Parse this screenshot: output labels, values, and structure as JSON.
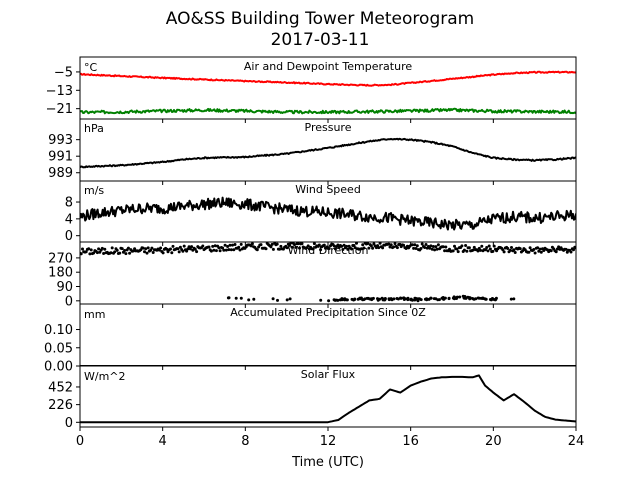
{
  "figure": {
    "title_line1": "AO&SS Building Tower Meteorogram",
    "title_line2": "2017-03-11",
    "xlabel": "Time (UTC)",
    "xlim": [
      0,
      24
    ],
    "xticks": [
      0,
      4,
      8,
      12,
      16,
      20,
      24
    ]
  },
  "chart_data": [
    {
      "type": "line",
      "title": "Air and Dewpoint Temperature",
      "unit": "°C",
      "ylim": [
        -25.5,
        1.5
      ],
      "yticks": [
        -5,
        -13,
        -21
      ],
      "ytick_labels": [
        "−5",
        "−13",
        "−21"
      ],
      "series": [
        {
          "color": "#ff0000",
          "x": [
            0,
            2,
            4,
            6,
            8,
            10,
            12,
            13,
            14,
            15,
            16,
            18,
            20,
            21,
            22,
            23,
            24
          ],
          "y": [
            -6.0,
            -6.8,
            -7.6,
            -8.3,
            -9.0,
            -9.6,
            -10.3,
            -10.6,
            -10.8,
            -10.6,
            -9.8,
            -8.0,
            -6.2,
            -5.5,
            -5.2,
            -5.1,
            -5.1
          ]
        },
        {
          "color": "#008000",
          "x": [
            0,
            2,
            4,
            6,
            8,
            10,
            12,
            14,
            16,
            18,
            20,
            22,
            24
          ],
          "y": [
            -22.6,
            -22.4,
            -22.0,
            -21.6,
            -22.0,
            -22.5,
            -22.5,
            -22.3,
            -22.0,
            -21.6,
            -22.1,
            -22.3,
            -22.4
          ]
        }
      ]
    },
    {
      "type": "line",
      "title": "Pressure",
      "unit": "hPa",
      "ylim": [
        988.0,
        995.5
      ],
      "yticks": [
        989,
        991,
        993
      ],
      "ytick_labels": [
        "989",
        "991",
        "993"
      ],
      "series": [
        {
          "color": "#000000",
          "x": [
            0,
            2,
            4,
            5,
            6,
            8,
            10,
            12,
            13,
            14,
            15,
            16,
            17,
            18,
            19,
            20,
            21,
            22,
            23,
            24
          ],
          "y": [
            989.7,
            989.9,
            990.3,
            990.6,
            990.8,
            990.9,
            991.3,
            992.0,
            992.4,
            992.8,
            993.1,
            993.0,
            992.7,
            992.2,
            991.4,
            990.8,
            990.6,
            990.5,
            990.6,
            990.8
          ]
        }
      ]
    },
    {
      "type": "line",
      "title": "Wind Speed",
      "unit": "m/s",
      "ylim": [
        -1.5,
        13.0
      ],
      "yticks": [
        0,
        4,
        8
      ],
      "ytick_labels": [
        "0",
        "4",
        "8"
      ],
      "series": [
        {
          "color": "#000000",
          "x": [
            0,
            1,
            2,
            3,
            4,
            5,
            6,
            7,
            8,
            9,
            10,
            11,
            12,
            13,
            14,
            15,
            16,
            17,
            18,
            19,
            20,
            21,
            22,
            23,
            24
          ],
          "y": [
            4.5,
            5.5,
            6.0,
            6.5,
            6.5,
            7.0,
            7.5,
            7.8,
            7.5,
            6.8,
            6.2,
            5.8,
            5.5,
            5.0,
            4.5,
            4.2,
            3.5,
            3.0,
            2.5,
            2.5,
            4.0,
            4.5,
            4.2,
            4.5,
            5.0
          ]
        }
      ]
    },
    {
      "type": "scatter",
      "title": "Wind Direction",
      "unit": "",
      "ylim": [
        -20,
        370
      ],
      "yticks": [
        0,
        90,
        180,
        270
      ],
      "ytick_labels": [
        "0",
        "90",
        "180",
        "270"
      ],
      "series": [
        {
          "color": "#000000",
          "x": [
            0,
            2,
            4,
            6,
            8,
            10,
            12,
            14,
            16,
            18,
            20,
            22,
            24
          ],
          "y": [
            310,
            315,
            320,
            330,
            340,
            345,
            340,
            345,
            340,
            330,
            325,
            320,
            320
          ]
        },
        {
          "color": "#000000",
          "x": [
            7.2,
            7.8,
            8.3,
            9.5,
            10.2,
            11.8,
            12.5,
            13.0,
            13.5,
            14.0,
            14.5,
            15.0,
            15.5,
            16.0,
            16.5,
            17.0,
            17.5,
            18.0,
            18.5,
            19.0,
            19.5,
            20.0,
            21.0
          ],
          "y": [
            12,
            10,
            8,
            6,
            10,
            4,
            8,
            10,
            12,
            14,
            10,
            8,
            12,
            10,
            6,
            12,
            14,
            18,
            22,
            16,
            12,
            10,
            8
          ]
        }
      ]
    },
    {
      "type": "line",
      "title": "Accumulated Precipitation Since 0Z",
      "unit": "mm",
      "ylim": [
        0,
        0.17
      ],
      "yticks": [
        0.0,
        0.05,
        0.1
      ],
      "ytick_labels": [
        "0.00",
        "0.05",
        "0.10"
      ],
      "series": [
        {
          "color": "#000000",
          "x": [
            0,
            24
          ],
          "y": [
            0,
            0
          ]
        }
      ]
    },
    {
      "type": "line",
      "title": "Solar Flux",
      "unit": "W/m^2",
      "ylim": [
        -60,
        720
      ],
      "yticks": [
        0,
        226,
        452
      ],
      "ytick_labels": [
        "0",
        "226",
        "452"
      ],
      "series": [
        {
          "color": "#000000",
          "x": [
            0,
            12,
            12.5,
            13,
            13.5,
            14,
            14.5,
            15,
            15.5,
            16,
            16.5,
            17,
            17.5,
            18,
            18.5,
            19,
            19.3,
            19.6,
            20,
            20.5,
            21,
            21.5,
            22,
            22.5,
            23,
            24
          ],
          "y": [
            0,
            2,
            30,
            120,
            200,
            280,
            300,
            420,
            380,
            470,
            520,
            560,
            575,
            580,
            580,
            575,
            600,
            470,
            380,
            280,
            360,
            260,
            150,
            70,
            35,
            10
          ]
        }
      ]
    }
  ]
}
